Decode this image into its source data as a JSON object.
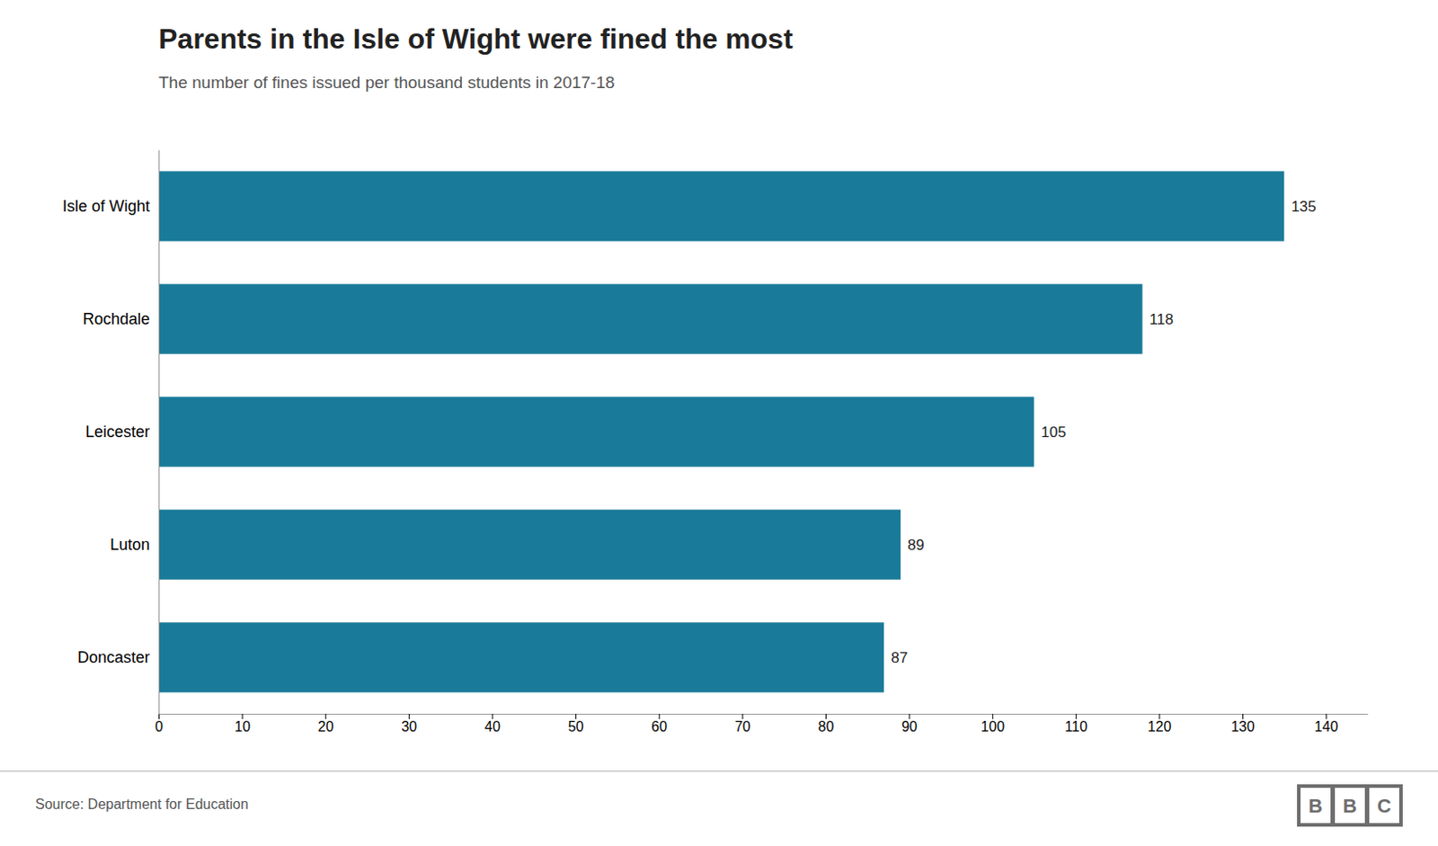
{
  "chart_data": {
    "type": "bar",
    "title": "Parents in the Isle of Wight were fined the most",
    "subtitle": "The number of fines issued per thousand students in 2017-18",
    "categories": [
      "Isle of Wight",
      "Rochdale",
      "Leicester",
      "Luton",
      "Doncaster"
    ],
    "values": [
      135,
      118,
      105,
      89,
      87
    ],
    "color": "#1a7a99",
    "orientation": "horizontal",
    "xlim": [
      0,
      145
    ],
    "xticks": [
      0,
      10,
      20,
      30,
      40,
      50,
      60,
      70,
      80,
      90,
      100,
      110,
      120,
      130,
      140
    ],
    "grid": false,
    "data_labels": true,
    "annotations": [
      "Source: Department for Education",
      "BBC"
    ]
  }
}
